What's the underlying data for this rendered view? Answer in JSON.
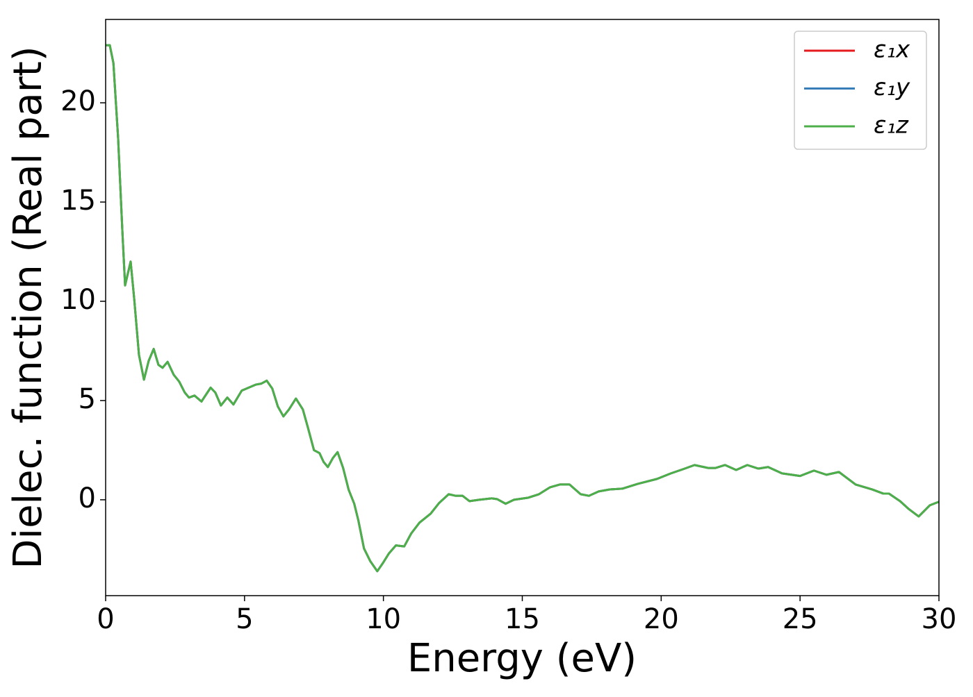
{
  "chart_data": {
    "type": "line",
    "xlabel": "Energy (eV)",
    "ylabel": "Dielec. function (Real part)",
    "x": [
      0,
      0.15,
      0.28,
      0.45,
      0.6,
      0.7,
      0.9,
      1.03,
      1.2,
      1.38,
      1.55,
      1.73,
      1.9,
      2.05,
      2.23,
      2.45,
      2.65,
      2.85,
      3.0,
      3.2,
      3.45,
      3.78,
      3.95,
      4.15,
      4.38,
      4.6,
      4.9,
      5.15,
      5.4,
      5.6,
      5.8,
      6.0,
      6.2,
      6.4,
      6.6,
      6.85,
      7.1,
      7.28,
      7.5,
      7.7,
      7.85,
      8.0,
      8.18,
      8.35,
      8.55,
      8.75,
      8.95,
      9.1,
      9.3,
      9.53,
      9.78,
      10.0,
      10.2,
      10.45,
      10.75,
      11.0,
      11.3,
      11.7,
      12.0,
      12.35,
      12.6,
      12.85,
      13.1,
      13.45,
      13.9,
      14.1,
      14.4,
      14.7,
      15.2,
      15.6,
      16.0,
      16.35,
      16.7,
      17.1,
      17.4,
      17.75,
      18.15,
      18.6,
      19.15,
      19.85,
      20.35,
      20.85,
      21.2,
      21.7,
      21.95,
      22.3,
      22.7,
      23.1,
      23.5,
      23.85,
      24.35,
      25.0,
      25.5,
      25.95,
      26.4,
      27.0,
      27.6,
      28.0,
      28.2,
      28.6,
      28.9,
      29.27,
      29.67,
      30
    ],
    "series": [
      {
        "name": "ε₁x",
        "color": "#e41a1c",
        "values": [
          22.9,
          22.9,
          22.0,
          18.2,
          13.6,
          10.8,
          12.0,
          10.1,
          7.3,
          6.05,
          7.0,
          7.6,
          6.8,
          6.65,
          6.95,
          6.3,
          5.95,
          5.4,
          5.15,
          5.25,
          4.95,
          5.65,
          5.4,
          4.75,
          5.15,
          4.8,
          5.5,
          5.65,
          5.8,
          5.85,
          6.0,
          5.6,
          4.7,
          4.2,
          4.55,
          5.1,
          4.55,
          3.65,
          2.5,
          2.35,
          1.9,
          1.65,
          2.1,
          2.4,
          1.6,
          0.5,
          -0.2,
          -1.05,
          -2.45,
          -3.1,
          -3.6,
          -3.15,
          -2.7,
          -2.3,
          -2.35,
          -1.7,
          -1.15,
          -0.7,
          -0.17,
          0.28,
          0.2,
          0.2,
          -0.07,
          0,
          0.07,
          0.03,
          -0.2,
          0,
          0.1,
          0.28,
          0.63,
          0.77,
          0.77,
          0.28,
          0.2,
          0.42,
          0.52,
          0.56,
          0.8,
          1.05,
          1.33,
          1.57,
          1.75,
          1.6,
          1.6,
          1.75,
          1.5,
          1.75,
          1.57,
          1.65,
          1.33,
          1.2,
          1.47,
          1.26,
          1.4,
          0.77,
          0.52,
          0.31,
          0.31,
          -0.07,
          -0.45,
          -0.84,
          -0.28,
          -0.1
        ]
      },
      {
        "name": "ε₁y",
        "color": "#377eb8",
        "values": [
          22.9,
          22.9,
          22.0,
          18.2,
          13.6,
          10.8,
          12.0,
          10.1,
          7.3,
          6.05,
          7.0,
          7.6,
          6.8,
          6.65,
          6.95,
          6.3,
          5.95,
          5.4,
          5.15,
          5.25,
          4.95,
          5.65,
          5.4,
          4.75,
          5.15,
          4.8,
          5.5,
          5.65,
          5.8,
          5.85,
          6.0,
          5.6,
          4.7,
          4.2,
          4.55,
          5.1,
          4.55,
          3.65,
          2.5,
          2.35,
          1.9,
          1.65,
          2.1,
          2.4,
          1.6,
          0.5,
          -0.2,
          -1.05,
          -2.45,
          -3.1,
          -3.6,
          -3.15,
          -2.7,
          -2.3,
          -2.35,
          -1.7,
          -1.15,
          -0.7,
          -0.17,
          0.28,
          0.2,
          0.2,
          -0.07,
          0,
          0.07,
          0.03,
          -0.2,
          0,
          0.1,
          0.28,
          0.63,
          0.77,
          0.77,
          0.28,
          0.2,
          0.42,
          0.52,
          0.56,
          0.8,
          1.05,
          1.33,
          1.57,
          1.75,
          1.6,
          1.6,
          1.75,
          1.5,
          1.75,
          1.57,
          1.65,
          1.33,
          1.2,
          1.47,
          1.26,
          1.4,
          0.77,
          0.52,
          0.31,
          0.31,
          -0.07,
          -0.45,
          -0.84,
          -0.28,
          -0.1
        ]
      },
      {
        "name": "ε₁z",
        "color": "#4daf4a",
        "values": [
          22.9,
          22.9,
          22.0,
          18.2,
          13.6,
          10.8,
          12.0,
          10.1,
          7.3,
          6.05,
          7.0,
          7.6,
          6.8,
          6.65,
          6.95,
          6.3,
          5.95,
          5.4,
          5.15,
          5.25,
          4.95,
          5.65,
          5.4,
          4.75,
          5.15,
          4.8,
          5.5,
          5.65,
          5.8,
          5.85,
          6.0,
          5.6,
          4.7,
          4.2,
          4.55,
          5.1,
          4.55,
          3.65,
          2.5,
          2.35,
          1.9,
          1.65,
          2.1,
          2.4,
          1.6,
          0.5,
          -0.2,
          -1.05,
          -2.45,
          -3.1,
          -3.6,
          -3.15,
          -2.7,
          -2.3,
          -2.35,
          -1.7,
          -1.15,
          -0.7,
          -0.17,
          0.28,
          0.2,
          0.2,
          -0.07,
          0,
          0.07,
          0.03,
          -0.2,
          0,
          0.1,
          0.28,
          0.63,
          0.77,
          0.77,
          0.28,
          0.2,
          0.42,
          0.52,
          0.56,
          0.8,
          1.05,
          1.33,
          1.57,
          1.75,
          1.6,
          1.6,
          1.75,
          1.5,
          1.75,
          1.57,
          1.65,
          1.33,
          1.2,
          1.47,
          1.26,
          1.4,
          0.77,
          0.52,
          0.31,
          0.31,
          -0.07,
          -0.45,
          -0.84,
          -0.28,
          -0.1
        ]
      }
    ],
    "xlim": [
      0,
      30
    ],
    "xticks": [
      0,
      5,
      10,
      15,
      20,
      25,
      30
    ],
    "ylim": [
      -4.83,
      24.2
    ],
    "yticks": [
      0,
      5,
      10,
      15,
      20
    ],
    "grid": false,
    "legend": "upper right"
  }
}
